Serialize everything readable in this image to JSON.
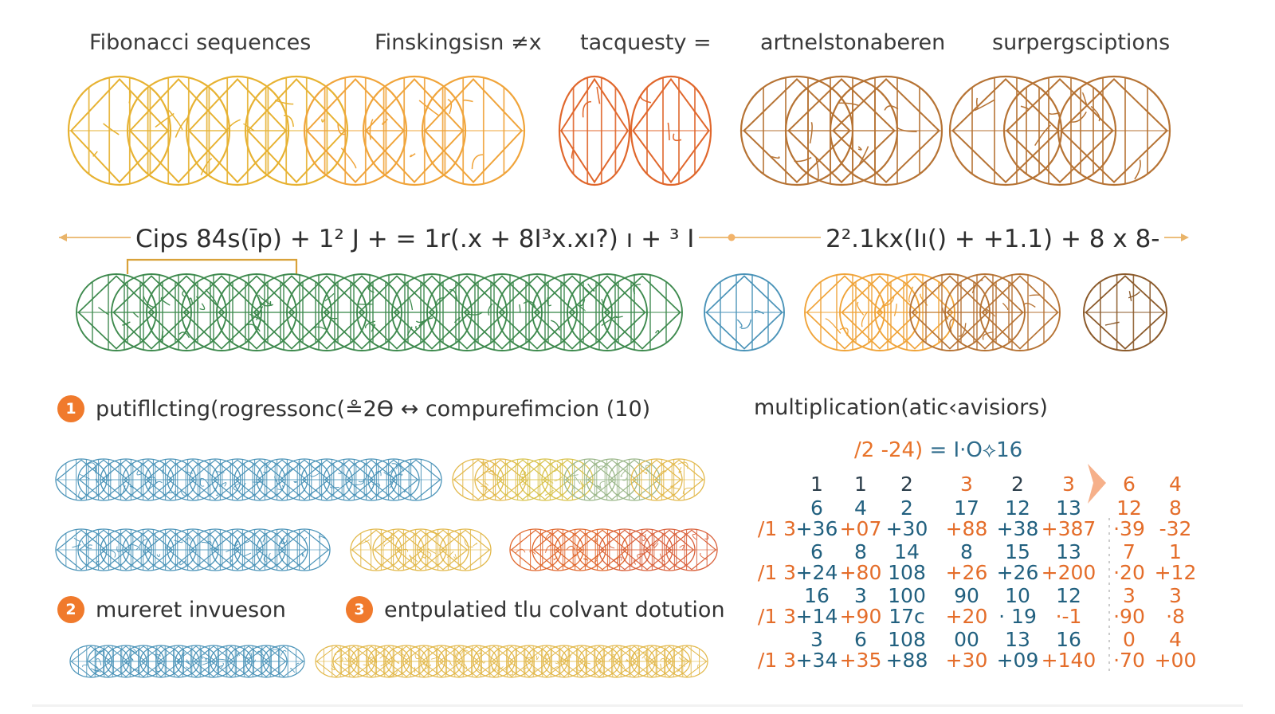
{
  "headers": [
    "Fibonacci sequences",
    "Finskingsisn ≠x",
    "tacquesty =",
    "artnelstonaberen",
    "surpergsciptions"
  ],
  "formula_left": "Cips 84s(īp) + 1² J  + = 1r(.x + 8I³x.xı?) ı + ³ I",
  "formula_right": "2².1kx(Iı() + +1.1) + 8 x 8-",
  "steps": [
    {
      "num": "1",
      "text": "putifllcting(rogressonc(≗2Ө ↔ compurefimcion (10)"
    },
    {
      "num": "2",
      "text": "mureret invueson"
    },
    {
      "num": "3",
      "text": "entpulatied tlu colvant dotution"
    }
  ],
  "multiplication": {
    "title": "multiplication(atic‹avisiors)",
    "equation_prefix": "/2 -24)",
    "equation_suffix": " = I·O⟡16",
    "header_row": [
      "1",
      "1",
      "2",
      "3",
      "2",
      "3",
      "6",
      "4"
    ],
    "rows": [
      {
        "label": "",
        "top": [
          "6",
          "4",
          "2",
          "17",
          "12",
          "13",
          "12",
          "8"
        ],
        "bottom": [
          "+36",
          "+07",
          "+30",
          "+88",
          "+38",
          "+387",
          "·39",
          "-32"
        ]
      },
      {
        "label": "",
        "top": [
          "6",
          "8",
          "14",
          "8",
          "15",
          "13",
          "7",
          "1"
        ],
        "bottom": [
          "+24",
          "+80",
          "108",
          "+26",
          "+26",
          "+200",
          "·20",
          "+12"
        ]
      },
      {
        "label": "",
        "top": [
          "16",
          "3",
          "100",
          "90",
          "10",
          "12",
          "3",
          "3"
        ],
        "bottom": [
          "+14",
          "+90",
          "17c",
          "+20",
          "· 19",
          "·-1",
          "·90",
          "·8"
        ]
      },
      {
        "label": "",
        "top": [
          "3",
          "6",
          "108",
          "00",
          "13",
          "16",
          "0",
          "4"
        ],
        "bottom": [
          "+34",
          "+35",
          "+88",
          "+30",
          "+09",
          "+140",
          "·70",
          "+00"
        ]
      }
    ],
    "row_prefix": "/1 3"
  },
  "colors": {
    "gold": "#e7b232",
    "orange": "#f0a43a",
    "red_orange": "#e0672c",
    "brown": "#b67334",
    "dark_brown": "#8b5a2b",
    "green": "#3e8a4e",
    "teal_blue": "#4a93b8",
    "accent": "#f07a2c",
    "blue_num": "#21607f",
    "orange_num": "#e46d2a"
  }
}
